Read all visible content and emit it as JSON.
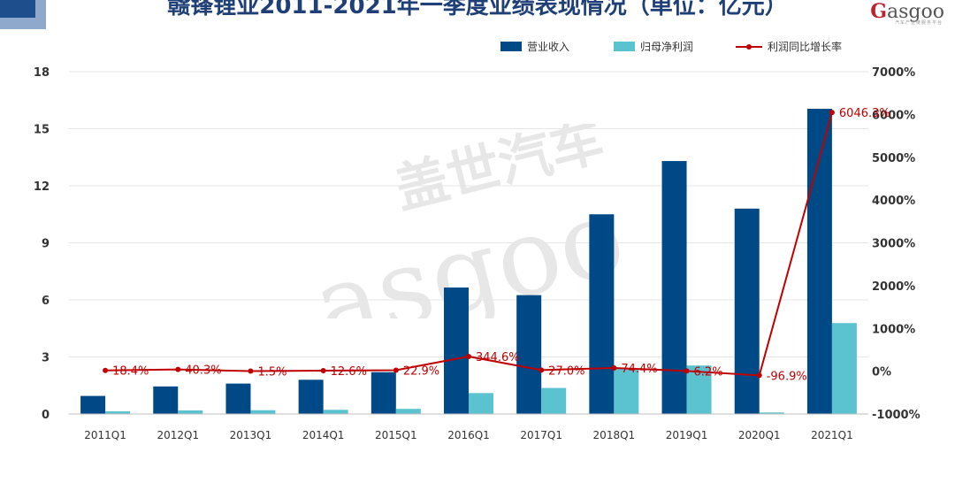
{
  "header": {
    "title": "赣锋锂业2011-2021年一季度业绩表现情况（单位：亿元）",
    "logo_text": "asgoo",
    "logo_sub": "汽车产业链服务平台"
  },
  "watermark": {
    "cn": "盖世汽车",
    "en": "asgoo"
  },
  "colors": {
    "revenue": "#004987",
    "profit": "#5bc3cf",
    "growth": "#c00000"
  },
  "chart_data": {
    "type": "bar",
    "title": "赣锋锂业2011-2021年一季度业绩表现情况（单位：亿元）",
    "categories": [
      "2011Q1",
      "2012Q1",
      "2013Q1",
      "2014Q1",
      "2015Q1",
      "2016Q1",
      "2017Q1",
      "2018Q1",
      "2019Q1",
      "2020Q1",
      "2021Q1"
    ],
    "series": [
      {
        "name": "营业收入",
        "type": "bar",
        "axis": "left",
        "values": [
          0.95,
          1.45,
          1.6,
          1.8,
          2.2,
          6.65,
          6.25,
          10.5,
          13.3,
          10.8,
          16.05
        ]
      },
      {
        "name": "归母净利润",
        "type": "bar",
        "axis": "left",
        "values": [
          0.14,
          0.19,
          0.2,
          0.22,
          0.27,
          1.1,
          1.37,
          2.4,
          2.55,
          0.08,
          4.78
        ]
      },
      {
        "name": "利润同比增长率",
        "type": "line",
        "axis": "right",
        "unit": "%",
        "values": [
          18.4,
          40.3,
          1.5,
          12.6,
          22.9,
          344.6,
          27.0,
          74.4,
          6.2,
          -96.9,
          6046.3
        ],
        "labels": [
          "18.4%",
          "40.3%",
          "1.5%",
          "12.6%",
          "22.9%",
          "344.6%",
          "27.0%",
          "74.4%",
          "6.2%",
          "-96.9%",
          "6046.3%"
        ]
      }
    ],
    "y_left": {
      "ticks": [
        "0",
        "3",
        "6",
        "9",
        "12",
        "15",
        "18"
      ],
      "min": 0,
      "max": 18
    },
    "y_right": {
      "ticks": [
        "-1000%",
        "0%",
        "1000%",
        "2000%",
        "3000%",
        "4000%",
        "5000%",
        "6000%",
        "7000%"
      ],
      "min": -1000,
      "max": 7000
    },
    "grid": true,
    "legend_position": "top-right"
  }
}
